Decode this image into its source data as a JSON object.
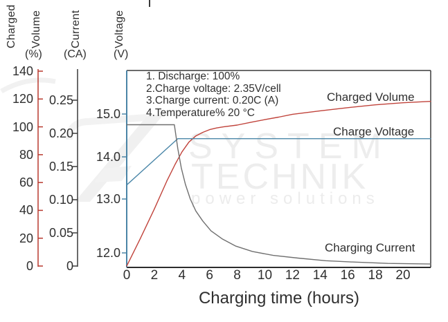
{
  "axes": {
    "charged_volume": {
      "word1": "Charged",
      "word2": "Volume",
      "unit": "(%)",
      "color": "#b8392e",
      "ticks": [
        "140",
        "120",
        "100",
        "80",
        "60",
        "40",
        "20",
        "0"
      ],
      "tick_values": [
        140,
        120,
        100,
        80,
        60,
        40,
        20,
        0
      ]
    },
    "current": {
      "word1": "Current",
      "unit": "(CA)",
      "color": "#3a3a3a",
      "ticks": [
        "0.25",
        "0.20",
        "0.15",
        "0.10",
        "0.05",
        "0"
      ],
      "tick_values": [
        0.25,
        0.2,
        0.15,
        0.1,
        0.05,
        0
      ]
    },
    "voltage": {
      "word1": "Voltage",
      "unit": "(V)",
      "color": "#4a84a6",
      "ticks": [
        "15.0",
        "14.0",
        "13.0",
        "12.0"
      ],
      "tick_values": [
        15,
        14,
        13,
        12
      ]
    },
    "x": {
      "title": "Charging time (hours)",
      "ticks": [
        "0",
        "2",
        "4",
        "6",
        "8",
        "10",
        "12",
        "14",
        "16",
        "18",
        "20"
      ],
      "tick_values": [
        0,
        2,
        4,
        6,
        8,
        10,
        12,
        14,
        16,
        18,
        20
      ]
    }
  },
  "annotations": [
    "1. Discharge: 100%",
    "2.Charge voltage: 2.35V/cell",
    "3.Charge current: 0.20C (A)",
    "4.Temperature% 20 °C"
  ],
  "curve_labels": {
    "charged_volume": "Charged Volume",
    "charge_voltage": "Charge Voltage",
    "charging_current": "Charging Current"
  },
  "watermark": {
    "line1": "SYSTEM",
    "line2": "TECHNIK",
    "line3": "power solutions"
  },
  "chart_data": {
    "type": "line",
    "title": "",
    "xlabel": "Charging time (hours)",
    "x_range": [
      0,
      22
    ],
    "grid": false,
    "legend_position": "inline-labels",
    "y_axes": [
      {
        "name": "Charged Volume (%)",
        "range_shown": [
          0,
          140
        ],
        "color": "#b8392e"
      },
      {
        "name": "Current (CA)",
        "range_shown": [
          0,
          0.25
        ],
        "color": "#3a3a3a"
      },
      {
        "name": "Voltage (V)",
        "range_shown": [
          12.0,
          15.0
        ],
        "color": "#4a84a6"
      }
    ],
    "series": [
      {
        "name": "Charged Volume",
        "axis": "charged_volume_pct",
        "color": "#c0423a",
        "x": [
          0,
          1,
          2,
          2.9,
          3.5,
          4,
          4.5,
          5,
          5.5,
          6,
          6.5,
          7,
          8,
          9,
          10,
          11,
          12,
          14,
          16,
          18,
          20,
          22
        ],
        "y": [
          0,
          20,
          41,
          61,
          73,
          82,
          89,
          93.5,
          96,
          98,
          99.2,
          100,
          101.3,
          103.3,
          105.2,
          107,
          109,
          111.5,
          113.8,
          115.8,
          117.3,
          118.3
        ]
      },
      {
        "name": "Charge Voltage",
        "axis": "voltage_v",
        "color": "#4a86a8",
        "x": [
          0,
          3.7,
          22
        ],
        "y": [
          13.33,
          14.42,
          14.42
        ]
      },
      {
        "name": "Charging Current",
        "axis": "current_ca",
        "color": "#6f6f6f",
        "x": [
          0,
          3.45,
          3.7,
          3.95,
          4.25,
          4.6,
          5,
          5.5,
          6.1,
          6.9,
          7.9,
          9.1,
          10.6,
          12.4,
          14.4,
          16.4,
          18.9,
          22
        ],
        "y": [
          0.213,
          0.213,
          0.177,
          0.148,
          0.123,
          0.101,
          0.083,
          0.068,
          0.053,
          0.041,
          0.03,
          0.022,
          0.016,
          0.012,
          0.008,
          0.006,
          0.004,
          0.003
        ]
      }
    ]
  }
}
